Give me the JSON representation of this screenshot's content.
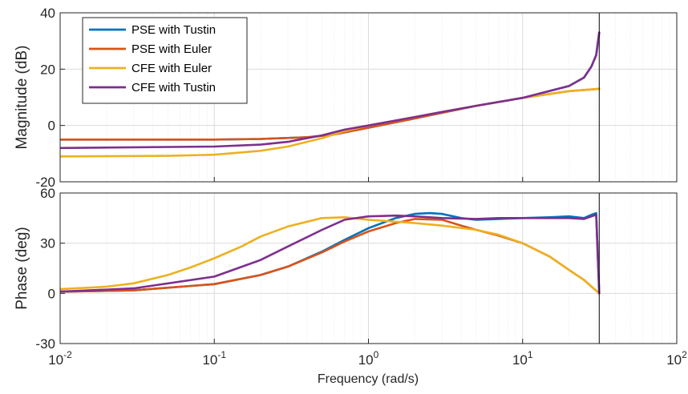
{
  "chart_data": {
    "type": "line",
    "title": "",
    "xlabel": "Frequency  (rad/s)",
    "x_scale": "log",
    "xlim": [
      0.01,
      100
    ],
    "x_ticks": [
      {
        "value": 0.01,
        "base": "10",
        "exp": "-2"
      },
      {
        "value": 0.1,
        "base": "10",
        "exp": "-1"
      },
      {
        "value": 1,
        "base": "10",
        "exp": "0"
      },
      {
        "value": 10,
        "base": "10",
        "exp": "1"
      },
      {
        "value": 100,
        "base": "10",
        "exp": "2"
      }
    ],
    "grid": true,
    "legend_position": "top-left",
    "nyquist_line_x": 31.4,
    "series_colors": {
      "PSE with Tustin": "#0072BD",
      "PSE with Euler": "#D95319",
      "CFE with Euler": "#EDB120",
      "CFE with Tustin": "#7E2F8E"
    },
    "legend": [
      "PSE with Tustin",
      "PSE with Euler",
      "CFE with Euler",
      "CFE with Tustin"
    ],
    "magnitude": {
      "ylabel": "Magnitude (dB)",
      "ylim": [
        -20,
        40
      ],
      "yticks": [
        "-20",
        "0",
        "20",
        "40"
      ],
      "series": [
        {
          "name": "PSE with Tustin",
          "color": "#0072BD",
          "x": [
            0.01,
            0.1,
            0.2,
            0.4,
            0.6,
            1,
            2,
            3,
            5,
            10,
            20,
            25,
            28,
            30,
            31.4
          ],
          "y": [
            -5,
            -5,
            -4.8,
            -4.2,
            -3.2,
            -0.8,
            2.5,
            4.5,
            7,
            9.8,
            14,
            17,
            21,
            25,
            33
          ]
        },
        {
          "name": "PSE with Euler",
          "color": "#D95319",
          "x": [
            0.01,
            0.1,
            0.2,
            0.4,
            0.6,
            1,
            2,
            3,
            5,
            10,
            20,
            31.4
          ],
          "y": [
            -5,
            -5,
            -4.8,
            -4.2,
            -3.2,
            -0.8,
            2.5,
            4.5,
            7,
            9.8,
            12.2,
            13
          ]
        },
        {
          "name": "CFE with Euler",
          "color": "#EDB120",
          "x": [
            0.01,
            0.05,
            0.1,
            0.2,
            0.3,
            0.5,
            0.7,
            1,
            2,
            3,
            5,
            10,
            20,
            31.4
          ],
          "y": [
            -11,
            -10.8,
            -10.4,
            -9,
            -7.5,
            -4.5,
            -2,
            0,
            3,
            4.8,
            7,
            9.8,
            12.2,
            13
          ]
        },
        {
          "name": "CFE with Tustin",
          "color": "#7E2F8E",
          "x": [
            0.01,
            0.1,
            0.2,
            0.3,
            0.5,
            0.7,
            1,
            2,
            3,
            5,
            10,
            20,
            25,
            28,
            30,
            31.4
          ],
          "y": [
            -8,
            -7.5,
            -6.8,
            -5.8,
            -3.5,
            -1.5,
            0,
            3,
            4.8,
            7,
            9.8,
            14,
            17,
            21,
            25,
            33
          ]
        }
      ]
    },
    "phase": {
      "ylabel": "Phase (deg)",
      "ylim": [
        -30,
        60
      ],
      "yticks": [
        "-30",
        "0",
        "30",
        "60"
      ],
      "series": [
        {
          "name": "PSE with Tustin",
          "color": "#0072BD",
          "x": [
            0.01,
            0.03,
            0.1,
            0.2,
            0.3,
            0.5,
            0.7,
            1,
            1.5,
            2,
            2.5,
            3,
            4,
            5,
            7,
            10,
            15,
            20,
            25,
            28,
            30,
            31.4
          ],
          "y": [
            1,
            1.8,
            5.5,
            11,
            16,
            25,
            32,
            39,
            45,
            47.5,
            48,
            47.5,
            45,
            44,
            44.5,
            45,
            45.5,
            46,
            45,
            47,
            48,
            0
          ]
        },
        {
          "name": "PSE with Euler",
          "color": "#D95319",
          "x": [
            0.01,
            0.03,
            0.1,
            0.2,
            0.3,
            0.5,
            0.7,
            1,
            1.5,
            2,
            3,
            4,
            5,
            7,
            10,
            15,
            20,
            25,
            31.4
          ],
          "y": [
            1,
            1.8,
            5.5,
            11,
            16,
            24.5,
            31,
            37,
            42,
            44.5,
            44,
            40.5,
            38,
            34.5,
            30,
            22,
            14,
            8,
            0
          ]
        },
        {
          "name": "CFE with Euler",
          "color": "#EDB120",
          "x": [
            0.01,
            0.02,
            0.03,
            0.05,
            0.07,
            0.1,
            0.15,
            0.2,
            0.3,
            0.5,
            0.7,
            1,
            2,
            3,
            5,
            7,
            10,
            15,
            20,
            25,
            31.4
          ],
          "y": [
            2.5,
            4,
            6,
            11,
            15.5,
            21,
            28,
            34,
            40,
            45,
            45.5,
            44,
            42,
            40.5,
            38,
            35,
            30,
            22,
            14,
            8,
            0
          ]
        },
        {
          "name": "CFE with Tustin",
          "color": "#7E2F8E",
          "x": [
            0.01,
            0.03,
            0.1,
            0.2,
            0.3,
            0.5,
            0.7,
            1,
            1.5,
            2,
            3,
            5,
            7,
            10,
            15,
            20,
            25,
            28,
            30,
            31.4
          ],
          "y": [
            1,
            3,
            10,
            20,
            28,
            38,
            44,
            46,
            46.5,
            46,
            45,
            44.5,
            45,
            45,
            45,
            45,
            44.5,
            46,
            47,
            0
          ]
        }
      ]
    }
  }
}
